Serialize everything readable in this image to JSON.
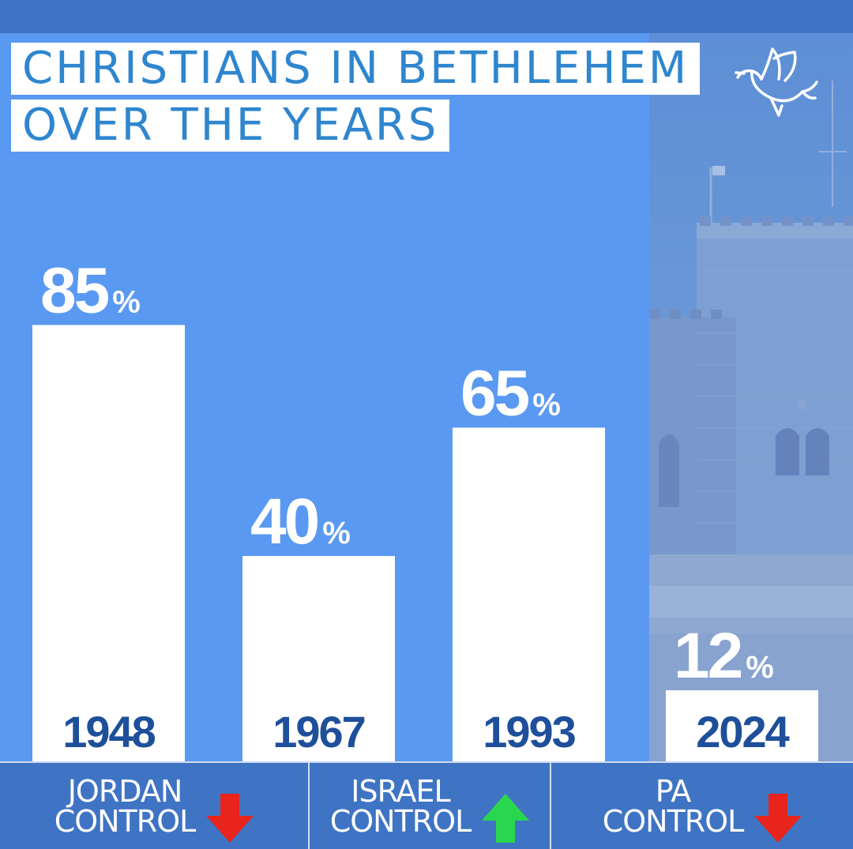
{
  "title": {
    "line1": "CHRISTIANS IN BETHLEHEM",
    "line2": "OVER THE YEARS"
  },
  "colors": {
    "background": "#5a99f2",
    "bar": "#ffffff",
    "title_text": "#2f86cf",
    "year_text": "#1e4f9a",
    "footer": "#3f74c4",
    "arrow_down": "#e8241d",
    "arrow_up": "#2bd64f"
  },
  "chart_data": {
    "type": "bar",
    "title": "CHRISTIANS IN BETHLEHEM OVER THE YEARS",
    "categories": [
      "1948",
      "1967",
      "1993",
      "2024"
    ],
    "values": [
      85,
      40,
      65,
      12
    ],
    "value_labels": [
      "85",
      "40",
      "65",
      "12"
    ],
    "unit": "%",
    "ylim": [
      0,
      100
    ],
    "grid": false,
    "legend": "none"
  },
  "footer": {
    "items": [
      {
        "line1": "JORDAN",
        "line2": "CONTROL",
        "arrow": "down",
        "icon": "red-down-arrow-icon"
      },
      {
        "line1": "ISRAEL",
        "line2": "CONTROL",
        "arrow": "up",
        "icon": "green-up-arrow-icon"
      },
      {
        "line1": "PA",
        "line2": "CONTROL",
        "arrow": "down",
        "icon": "red-down-arrow-icon"
      }
    ]
  },
  "decor": {
    "dove_icon": "dove-icon",
    "background_photo": "stone-church-tower"
  }
}
